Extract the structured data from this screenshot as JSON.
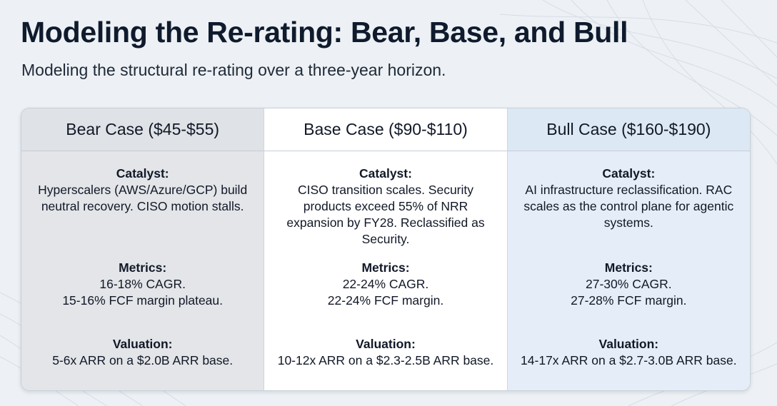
{
  "header": {
    "title": "Modeling the Re-rating: Bear, Base, and Bull",
    "subtitle": "Modeling the structural re-rating over a three-year horizon."
  },
  "columns": [
    {
      "heading": "Bear Case ($45-$55)",
      "catalyst_label": "Catalyst:",
      "catalyst": "Hyperscalers (AWS/Azure/GCP) build neutral recovery. CISO motion stalls.",
      "metrics_label": "Metrics:",
      "metrics_line1": "16-18% CAGR.",
      "metrics_line2": "15-16% FCF margin plateau.",
      "valuation_label": "Valuation:",
      "valuation": "5-6x ARR on a $2.0B ARR base."
    },
    {
      "heading": "Base Case ($90-$110)",
      "catalyst_label": "Catalyst:",
      "catalyst": "CISO transition scales. Security products exceed 55% of NRR expansion by FY28. Reclassified as Security.",
      "metrics_label": "Metrics:",
      "metrics_line1": "22-24% CAGR.",
      "metrics_line2": "22-24% FCF margin.",
      "valuation_label": "Valuation:",
      "valuation": "10-12x ARR on a $2.3-2.5B ARR base."
    },
    {
      "heading": "Bull Case ($160-$190)",
      "catalyst_label": "Catalyst:",
      "catalyst": "AI infrastructure reclassification. RAC scales as the control plane for agentic systems.",
      "metrics_label": "Metrics:",
      "metrics_line1": "27-30% CAGR.",
      "metrics_line2": "27-28% FCF margin.",
      "valuation_label": "Valuation:",
      "valuation": "14-17x ARR on a $2.7-3.0B ARR base."
    }
  ]
}
